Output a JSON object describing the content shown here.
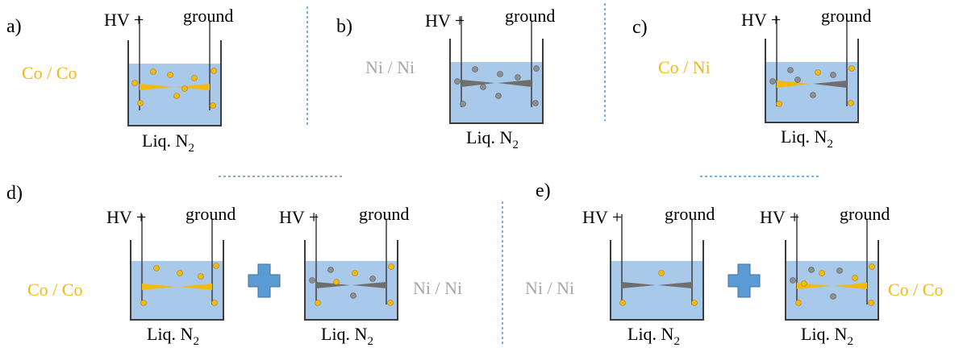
{
  "colors": {
    "cobalt": "#F2B90F",
    "nickel": "#8E8E8E",
    "nickel_text": "#A6A6A6",
    "liquid": "#A8C9EA",
    "container": "#3C3C3C",
    "divider": "#4F93D2",
    "plus": "#5B9BD5"
  },
  "setup": {
    "hv_label": "HV +",
    "ground_label": "ground",
    "liquid_label": "Liq. N",
    "liquid_subscript": "2"
  },
  "panels": [
    {
      "id": "a",
      "label": "a)",
      "pair_label": "Co / Co",
      "pair_color": "cobalt"
    },
    {
      "id": "b",
      "label": "b)",
      "pair_label": "Ni / Ni",
      "pair_color": "nickel"
    },
    {
      "id": "c",
      "label": "c)",
      "pair_label": "Co / Ni",
      "pair_color": "cobalt"
    },
    {
      "id": "d",
      "label": "d)",
      "left_pair_label": "Co / Co",
      "right_pair_label": "Ni / Ni"
    },
    {
      "id": "e",
      "label": "e)",
      "left_pair_label": "Ni / Ni",
      "right_pair_label": "Co / Co"
    }
  ],
  "icons": {
    "plus": "plus-icon"
  }
}
